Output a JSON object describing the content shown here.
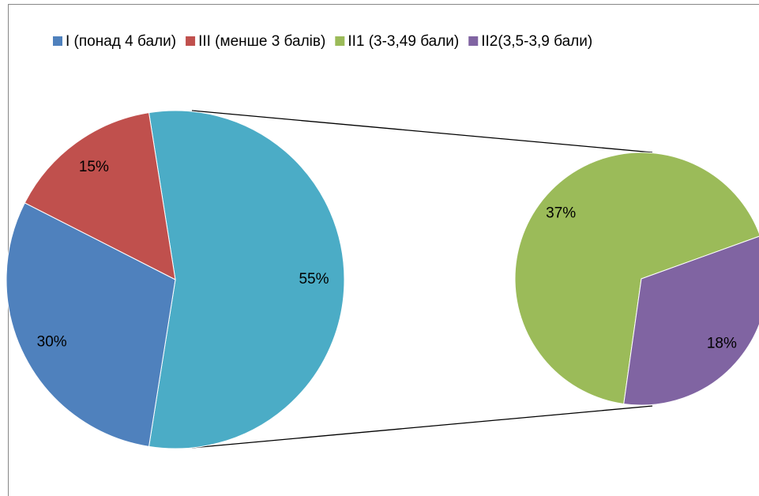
{
  "chart_data": {
    "type": "pie",
    "categories": [
      "I (понад 4 бали)",
      "III (менше 3 балів)",
      "II1 (3-3,49 бали)",
      "II2(3,5-3,9 бали)"
    ],
    "values": [
      30,
      15,
      37,
      18
    ],
    "value_labels": [
      "30%",
      "15%",
      "37%",
      "18%"
    ],
    "colors": [
      "#4f81bd",
      "#c0504d",
      "#9bbb59",
      "#8064a2"
    ],
    "other_value": 55,
    "other_value_label": "55%",
    "other_color": "#4bacc6",
    "legend": "top"
  }
}
